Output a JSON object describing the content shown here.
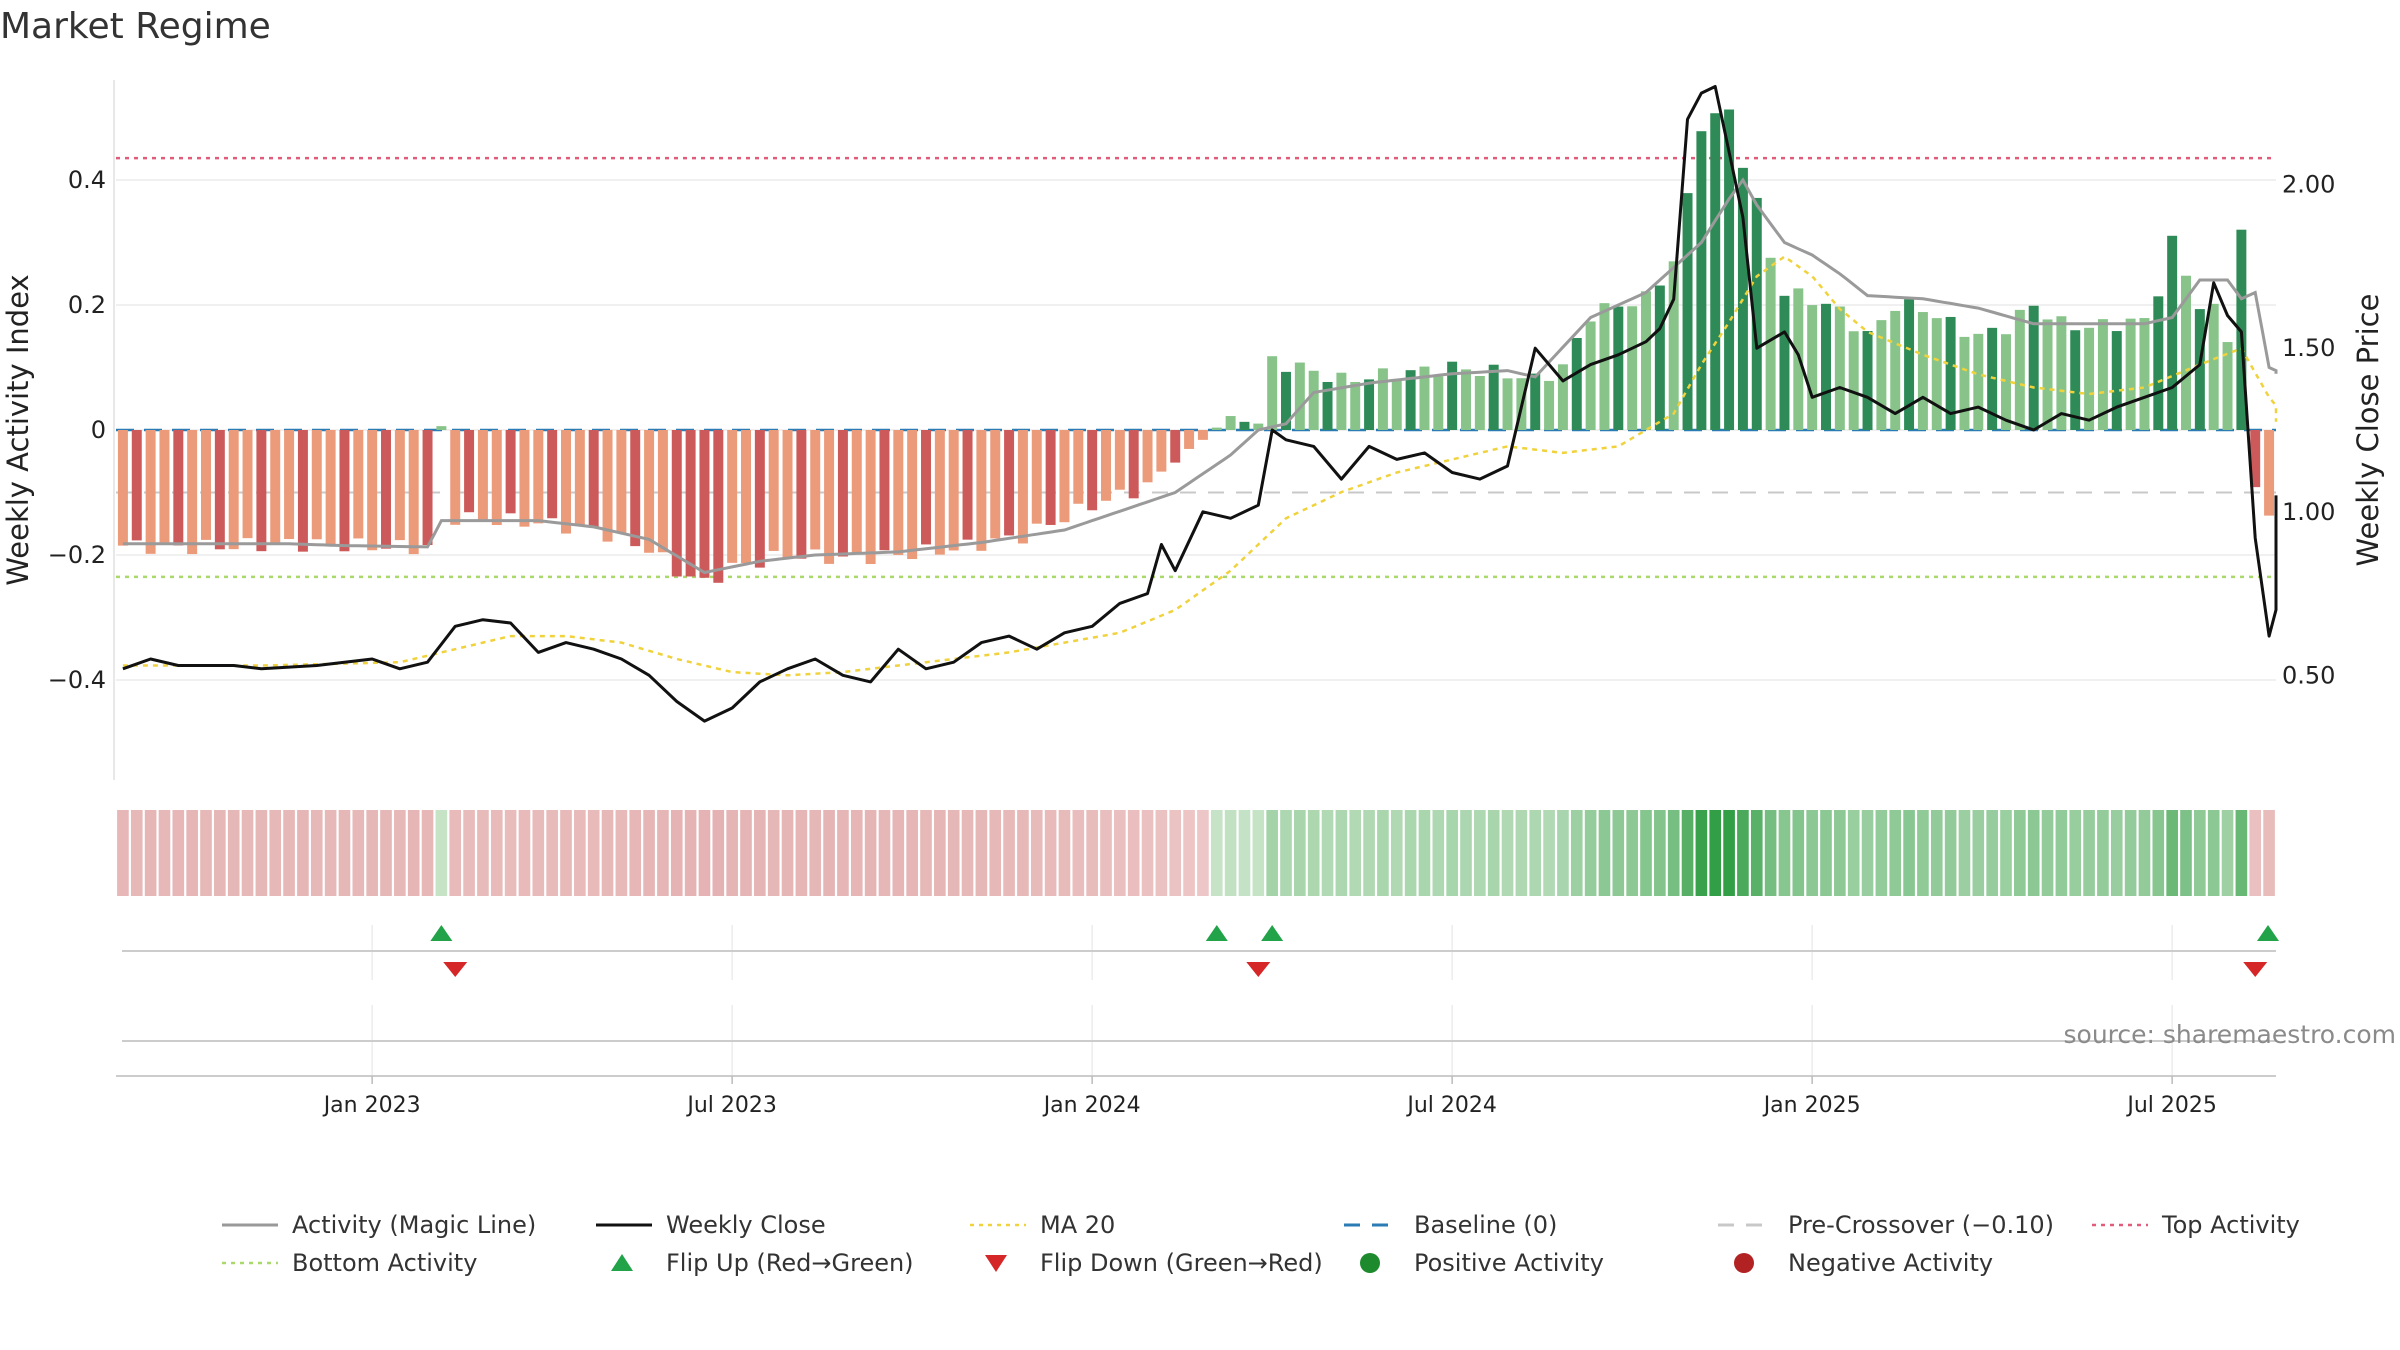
{
  "title": "Market Regime",
  "source": "source: sharemaestro.com",
  "chart_data": {
    "type": "bar",
    "title": "Market Regime",
    "y_left": {
      "label": "Weekly Activity Index",
      "ticks": [
        -0.4,
        -0.2,
        0,
        0.2,
        0.4
      ],
      "tick_labels": [
        "−0.4",
        "−0.2",
        "0",
        "0.2",
        "0.4"
      ],
      "range": [
        -0.56,
        0.56
      ]
    },
    "y_right": {
      "label": "Weekly Close Price",
      "ticks": [
        0.5,
        1.0,
        1.5,
        2.0
      ],
      "tick_labels": [
        "0.50",
        "1.00",
        "1.50",
        "2.00"
      ],
      "range": [
        0.18,
        2.32
      ]
    },
    "x_ticks": [
      "Jan 2023",
      "Jul 2023",
      "Jan 2024",
      "Jul 2024",
      "Jan 2025",
      "Jul 2025"
    ],
    "x_tick_weeks": [
      18,
      44,
      70,
      96,
      122,
      148
    ],
    "week_count": 156,
    "reference_lines": {
      "baseline": 0,
      "pre_crossover": -0.1,
      "top_activity": 0.435,
      "bottom_activity": -0.235
    },
    "activity_anchors": [
      [
        0,
        -0.185
      ],
      [
        5,
        -0.188
      ],
      [
        12,
        -0.182
      ],
      [
        18,
        -0.186
      ],
      [
        22,
        -0.188
      ],
      [
        23,
        0.005
      ],
      [
        24,
        -0.14
      ],
      [
        30,
        -0.148
      ],
      [
        34,
        -0.16
      ],
      [
        38,
        -0.19
      ],
      [
        40,
        -0.225
      ],
      [
        42,
        -0.245
      ],
      [
        44,
        -0.22
      ],
      [
        48,
        -0.2
      ],
      [
        52,
        -0.205
      ],
      [
        56,
        -0.2
      ],
      [
        60,
        -0.19
      ],
      [
        65,
        -0.17
      ],
      [
        70,
        -0.12
      ],
      [
        74,
        -0.09
      ],
      [
        76,
        -0.05
      ],
      [
        78,
        -0.015
      ],
      [
        79,
        0.005
      ],
      [
        80,
        0.02
      ],
      [
        82,
        0.01
      ],
      [
        83,
        0.11
      ],
      [
        85,
        0.1
      ],
      [
        88,
        0.08
      ],
      [
        90,
        0.085
      ],
      [
        92,
        0.09
      ],
      [
        94,
        0.095
      ],
      [
        96,
        0.1
      ],
      [
        100,
        0.09
      ],
      [
        102,
        0.08
      ],
      [
        104,
        0.1
      ],
      [
        106,
        0.185
      ],
      [
        108,
        0.2
      ],
      [
        110,
        0.21
      ],
      [
        112,
        0.27
      ],
      [
        113,
        0.37
      ],
      [
        114,
        0.49
      ],
      [
        116,
        0.51
      ],
      [
        117,
        0.43
      ],
      [
        118,
        0.36
      ],
      [
        119,
        0.28
      ],
      [
        120,
        0.22
      ],
      [
        122,
        0.21
      ],
      [
        124,
        0.19
      ],
      [
        126,
        0.15
      ],
      [
        128,
        0.2
      ],
      [
        130,
        0.195
      ],
      [
        132,
        0.17
      ],
      [
        134,
        0.15
      ],
      [
        136,
        0.165
      ],
      [
        138,
        0.2
      ],
      [
        140,
        0.17
      ],
      [
        142,
        0.165
      ],
      [
        144,
        0.17
      ],
      [
        146,
        0.175
      ],
      [
        147,
        0.225
      ],
      [
        148,
        0.3
      ],
      [
        149,
        0.25
      ],
      [
        150,
        0.2
      ],
      [
        151,
        0.19
      ],
      [
        152,
        0.15
      ],
      [
        153,
        0.32
      ],
      [
        154,
        -0.1
      ],
      [
        155,
        -0.125
      ],
      [
        156,
        0.06
      ]
    ],
    "magic_line_anchors": [
      [
        0,
        -0.182
      ],
      [
        8,
        -0.182
      ],
      [
        12,
        -0.182
      ],
      [
        16,
        -0.185
      ],
      [
        22,
        -0.187
      ],
      [
        23,
        -0.145
      ],
      [
        30,
        -0.145
      ],
      [
        34,
        -0.155
      ],
      [
        38,
        -0.175
      ],
      [
        42,
        -0.228
      ],
      [
        46,
        -0.21
      ],
      [
        50,
        -0.2
      ],
      [
        56,
        -0.195
      ],
      [
        62,
        -0.18
      ],
      [
        68,
        -0.16
      ],
      [
        72,
        -0.13
      ],
      [
        76,
        -0.1
      ],
      [
        80,
        -0.04
      ],
      [
        82,
        0.0
      ],
      [
        84,
        0.01
      ],
      [
        86,
        0.06
      ],
      [
        90,
        0.075
      ],
      [
        96,
        0.09
      ],
      [
        100,
        0.095
      ],
      [
        102,
        0.085
      ],
      [
        106,
        0.18
      ],
      [
        110,
        0.22
      ],
      [
        114,
        0.3
      ],
      [
        116,
        0.37
      ],
      [
        117,
        0.4
      ],
      [
        118,
        0.36
      ],
      [
        120,
        0.3
      ],
      [
        122,
        0.28
      ],
      [
        124,
        0.25
      ],
      [
        126,
        0.215
      ],
      [
        130,
        0.21
      ],
      [
        134,
        0.195
      ],
      [
        138,
        0.17
      ],
      [
        142,
        0.17
      ],
      [
        146,
        0.17
      ],
      [
        148,
        0.18
      ],
      [
        150,
        0.24
      ],
      [
        152,
        0.24
      ],
      [
        153,
        0.21
      ],
      [
        154,
        0.22
      ],
      [
        155,
        0.1
      ],
      [
        156,
        0.09
      ]
    ],
    "weekly_close_anchors": [
      [
        0,
        0.52
      ],
      [
        2,
        0.55
      ],
      [
        4,
        0.53
      ],
      [
        8,
        0.53
      ],
      [
        10,
        0.52
      ],
      [
        14,
        0.53
      ],
      [
        18,
        0.55
      ],
      [
        20,
        0.52
      ],
      [
        22,
        0.54
      ],
      [
        24,
        0.65
      ],
      [
        26,
        0.67
      ],
      [
        28,
        0.66
      ],
      [
        30,
        0.57
      ],
      [
        32,
        0.6
      ],
      [
        34,
        0.58
      ],
      [
        36,
        0.55
      ],
      [
        38,
        0.5
      ],
      [
        40,
        0.42
      ],
      [
        42,
        0.36
      ],
      [
        44,
        0.4
      ],
      [
        46,
        0.48
      ],
      [
        48,
        0.52
      ],
      [
        50,
        0.55
      ],
      [
        52,
        0.5
      ],
      [
        54,
        0.48
      ],
      [
        56,
        0.58
      ],
      [
        58,
        0.52
      ],
      [
        60,
        0.54
      ],
      [
        62,
        0.6
      ],
      [
        64,
        0.62
      ],
      [
        66,
        0.58
      ],
      [
        68,
        0.63
      ],
      [
        70,
        0.65
      ],
      [
        72,
        0.72
      ],
      [
        74,
        0.75
      ],
      [
        75,
        0.9
      ],
      [
        76,
        0.82
      ],
      [
        78,
        1.0
      ],
      [
        80,
        0.98
      ],
      [
        82,
        1.02
      ],
      [
        83,
        1.25
      ],
      [
        84,
        1.22
      ],
      [
        86,
        1.2
      ],
      [
        88,
        1.1
      ],
      [
        90,
        1.2
      ],
      [
        92,
        1.16
      ],
      [
        94,
        1.18
      ],
      [
        96,
        1.12
      ],
      [
        98,
        1.1
      ],
      [
        100,
        1.14
      ],
      [
        102,
        1.5
      ],
      [
        104,
        1.4
      ],
      [
        106,
        1.45
      ],
      [
        108,
        1.48
      ],
      [
        110,
        1.52
      ],
      [
        111,
        1.56
      ],
      [
        112,
        1.65
      ],
      [
        113,
        2.2
      ],
      [
        114,
        2.28
      ],
      [
        115,
        2.3
      ],
      [
        116,
        2.1
      ],
      [
        117,
        1.9
      ],
      [
        118,
        1.5
      ],
      [
        120,
        1.55
      ],
      [
        121,
        1.48
      ],
      [
        122,
        1.35
      ],
      [
        124,
        1.38
      ],
      [
        126,
        1.35
      ],
      [
        128,
        1.3
      ],
      [
        130,
        1.35
      ],
      [
        132,
        1.3
      ],
      [
        134,
        1.32
      ],
      [
        136,
        1.28
      ],
      [
        138,
        1.25
      ],
      [
        140,
        1.3
      ],
      [
        142,
        1.28
      ],
      [
        144,
        1.32
      ],
      [
        146,
        1.35
      ],
      [
        148,
        1.38
      ],
      [
        150,
        1.45
      ],
      [
        151,
        1.7
      ],
      [
        152,
        1.6
      ],
      [
        153,
        1.55
      ],
      [
        154,
        0.92
      ],
      [
        155,
        0.62
      ],
      [
        156,
        0.7
      ],
      [
        157,
        1.05
      ]
    ],
    "ma20_anchors": [
      [
        0,
        0.53
      ],
      [
        10,
        0.53
      ],
      [
        20,
        0.54
      ],
      [
        24,
        0.58
      ],
      [
        28,
        0.62
      ],
      [
        32,
        0.62
      ],
      [
        36,
        0.6
      ],
      [
        40,
        0.55
      ],
      [
        44,
        0.51
      ],
      [
        48,
        0.5
      ],
      [
        52,
        0.51
      ],
      [
        56,
        0.53
      ],
      [
        60,
        0.55
      ],
      [
        64,
        0.57
      ],
      [
        68,
        0.6
      ],
      [
        72,
        0.63
      ],
      [
        76,
        0.7
      ],
      [
        80,
        0.82
      ],
      [
        82,
        0.9
      ],
      [
        84,
        0.98
      ],
      [
        88,
        1.06
      ],
      [
        92,
        1.12
      ],
      [
        96,
        1.16
      ],
      [
        100,
        1.2
      ],
      [
        104,
        1.18
      ],
      [
        108,
        1.2
      ],
      [
        112,
        1.3
      ],
      [
        114,
        1.45
      ],
      [
        116,
        1.58
      ],
      [
        118,
        1.72
      ],
      [
        120,
        1.78
      ],
      [
        122,
        1.72
      ],
      [
        124,
        1.62
      ],
      [
        126,
        1.55
      ],
      [
        130,
        1.48
      ],
      [
        134,
        1.42
      ],
      [
        138,
        1.38
      ],
      [
        142,
        1.36
      ],
      [
        146,
        1.38
      ],
      [
        150,
        1.45
      ],
      [
        153,
        1.5
      ],
      [
        155,
        1.35
      ],
      [
        157,
        1.25
      ]
    ],
    "flip_up_weeks": [
      23,
      79,
      83,
      157
    ],
    "flip_down_weeks": [
      24,
      82,
      154
    ],
    "regime_strip": "color-coded weekly activity strength",
    "legend_position": "bottom",
    "grid": true,
    "legend": [
      {
        "label": "Activity (Magic Line)",
        "symbol": "line",
        "color": "#999999"
      },
      {
        "label": "Weekly Close",
        "symbol": "line",
        "color": "#111111"
      },
      {
        "label": "MA 20",
        "symbol": "dotted",
        "color": "#f0d23c"
      },
      {
        "label": "Baseline (0)",
        "symbol": "dashed",
        "color": "#2b7bb5"
      },
      {
        "label": "Pre-Crossover (−0.10)",
        "symbol": "dashed",
        "color": "#c8c8c8"
      },
      {
        "label": "Top Activity",
        "symbol": "dotted",
        "color": "#e05c7a"
      },
      {
        "label": "Bottom Activity",
        "symbol": "dotted",
        "color": "#a9d96b"
      },
      {
        "label": "Flip Up (Red→Green)",
        "symbol": "triangle-up",
        "color": "#22a34a"
      },
      {
        "label": "Flip Down (Green→Red)",
        "symbol": "triangle-down",
        "color": "#d62728"
      },
      {
        "label": "Positive Activity",
        "symbol": "circle",
        "color": "#1e8a2e"
      },
      {
        "label": "Negative Activity",
        "symbol": "circle",
        "color": "#b22222"
      }
    ]
  }
}
